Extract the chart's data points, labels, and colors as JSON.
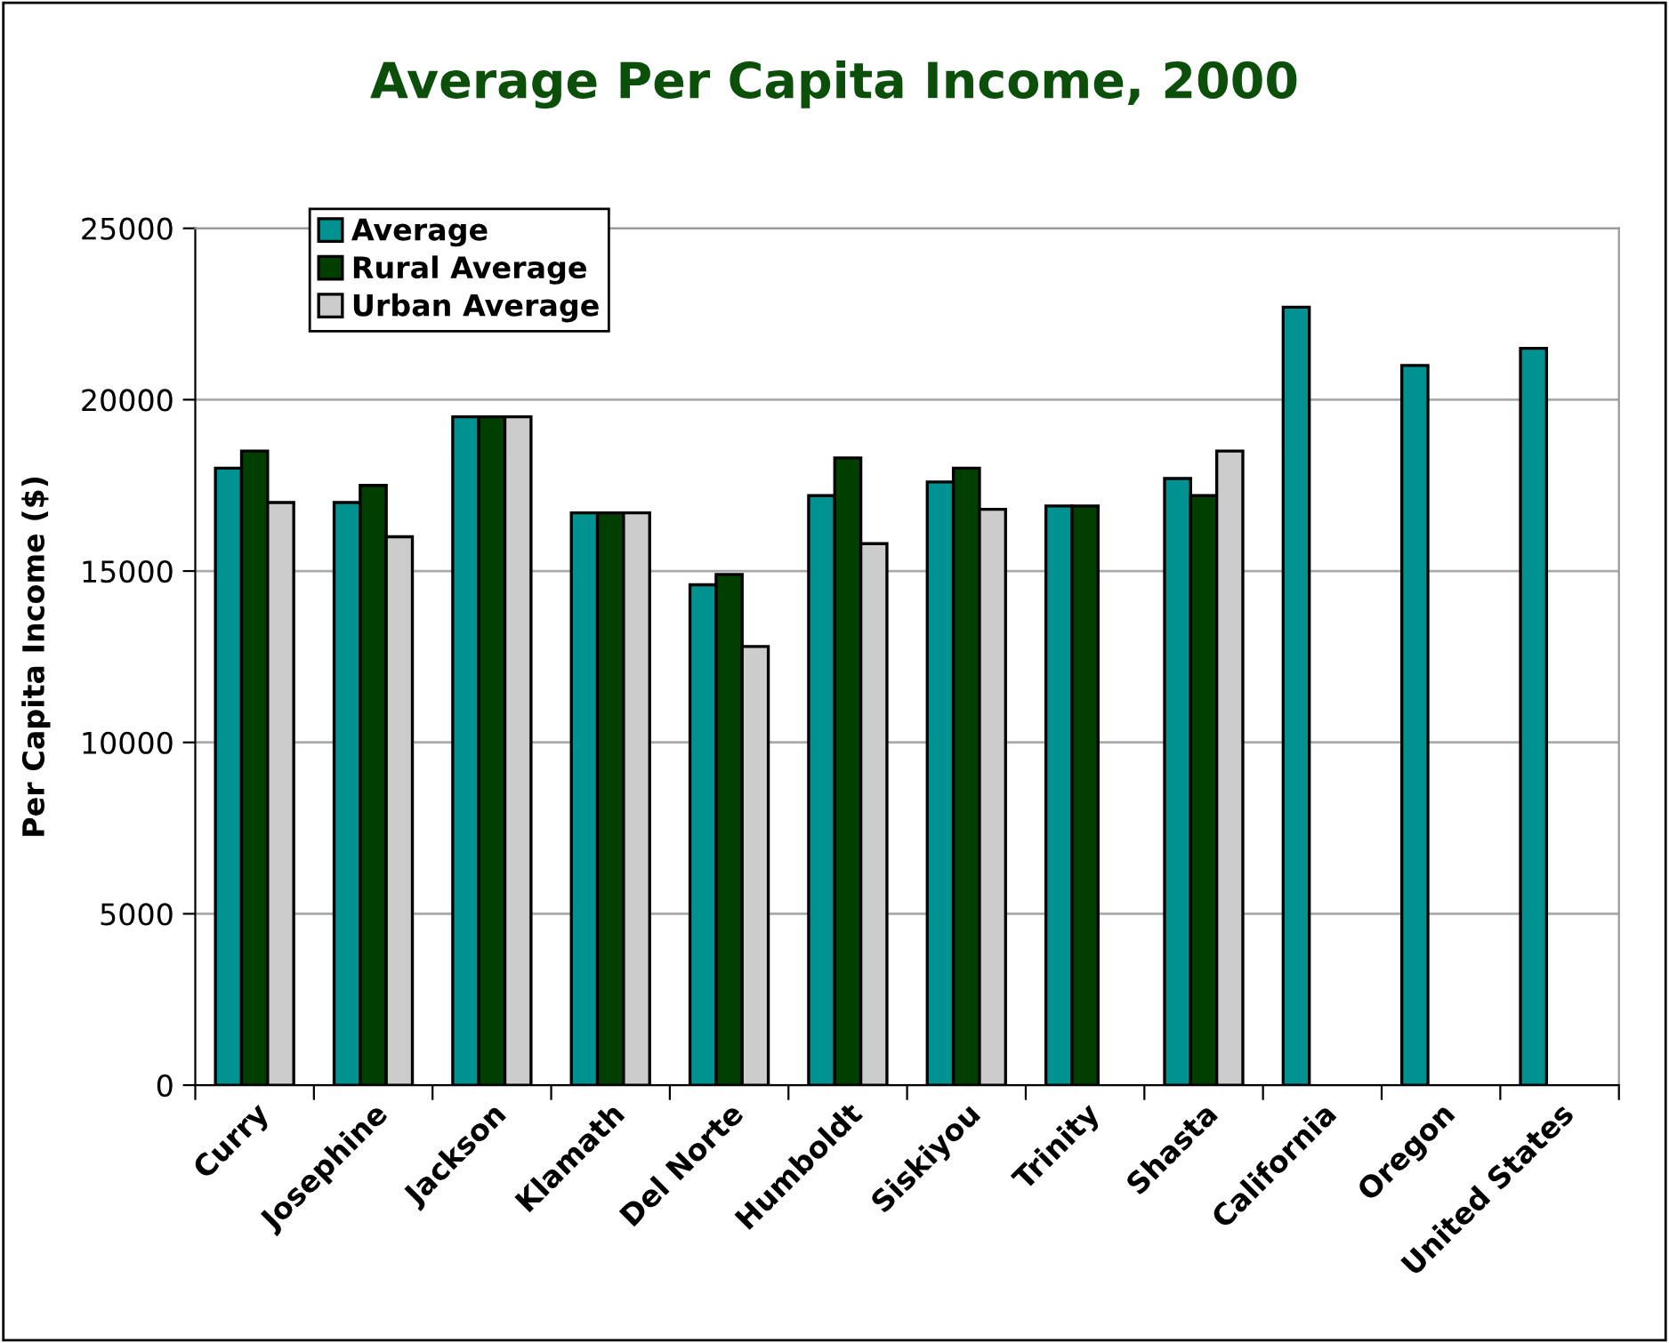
{
  "chart_data": {
    "type": "bar",
    "title": "Average Per Capita Income, 2000",
    "ylabel": "Per Capita Income ($)",
    "categories": [
      "Curry",
      "Josephine",
      "Jackson",
      "Klamath",
      "Del Norte",
      "Humboldt",
      "Siskiyou",
      "Trinity",
      "Shasta",
      "California",
      "Oregon",
      "United States"
    ],
    "series": [
      {
        "name": "Average",
        "color": "#009191",
        "values": [
          18000,
          17000,
          19500,
          16700,
          14600,
          17200,
          17600,
          16900,
          17700,
          22700,
          21000,
          21500
        ]
      },
      {
        "name": "Rural Average",
        "color": "#003f00",
        "values": [
          18500,
          17500,
          19500,
          16700,
          14900,
          18300,
          18000,
          16900,
          17200,
          null,
          null,
          null
        ]
      },
      {
        "name": "Urban Average",
        "color": "#cccccc",
        "values": [
          17000,
          16000,
          19500,
          16700,
          12800,
          15800,
          16800,
          null,
          18500,
          null,
          null,
          null
        ]
      }
    ],
    "ylim": [
      0,
      25000
    ],
    "yticks": [
      0,
      5000,
      10000,
      15000,
      20000,
      25000
    ],
    "grid": "y",
    "legend": "top left"
  }
}
